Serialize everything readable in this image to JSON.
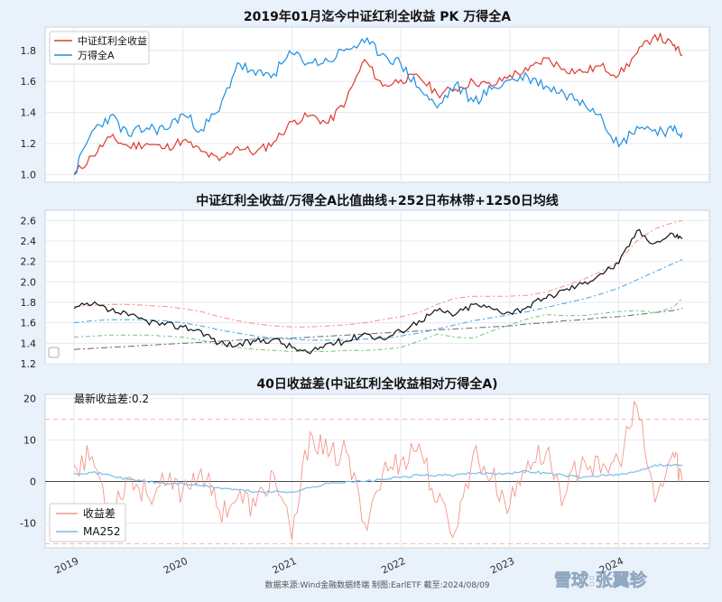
{
  "footer": {
    "source": "数据来源:Wind金融数据终端   制图:EarlETF 截至:2024/08/09",
    "watermark": "雪球:张翼轸"
  },
  "colors": {
    "dividend": "#e03a2f",
    "wanA": "#1f8fe0",
    "ratio": "#111111",
    "band_upper": "#ff8a80",
    "band_mid": "#3fa3e8",
    "band_lower": "#6cc46c",
    "ma1250": "#666666",
    "spread": "#f4968a",
    "ma252": "#79bde8"
  },
  "chart_data": [
    {
      "type": "line",
      "title": "2019年01月迄今中证红利全收益 PK 万得全A",
      "legend_position": "top-left",
      "grid": true,
      "ylim": [
        0.95,
        1.95
      ],
      "yticks": [
        "1.0",
        "1.2",
        "1.4",
        "1.6",
        "1.8"
      ],
      "x": [
        "2019-01",
        "2019-03",
        "2019-05",
        "2019-07",
        "2019-09",
        "2019-11",
        "2020-01",
        "2020-03",
        "2020-05",
        "2020-07",
        "2020-09",
        "2020-11",
        "2021-01",
        "2021-03",
        "2021-05",
        "2021-07",
        "2021-09",
        "2021-11",
        "2022-01",
        "2022-03",
        "2022-05",
        "2022-07",
        "2022-09",
        "2022-11",
        "2023-01",
        "2023-03",
        "2023-05",
        "2023-07",
        "2023-09",
        "2023-11",
        "2024-01",
        "2024-03",
        "2024-05",
        "2024-07",
        "2024-08"
      ],
      "series": [
        {
          "name": "中证红利全收益",
          "values": [
            1.0,
            1.12,
            1.24,
            1.18,
            1.2,
            1.17,
            1.22,
            1.15,
            1.09,
            1.18,
            1.14,
            1.21,
            1.34,
            1.38,
            1.33,
            1.48,
            1.74,
            1.57,
            1.61,
            1.63,
            1.52,
            1.55,
            1.6,
            1.57,
            1.64,
            1.67,
            1.75,
            1.68,
            1.66,
            1.7,
            1.64,
            1.78,
            1.9,
            1.83,
            1.77
          ]
        },
        {
          "name": "万得全A",
          "values": [
            1.0,
            1.28,
            1.38,
            1.25,
            1.3,
            1.29,
            1.39,
            1.29,
            1.41,
            1.72,
            1.64,
            1.65,
            1.78,
            1.72,
            1.73,
            1.81,
            1.85,
            1.78,
            1.71,
            1.56,
            1.43,
            1.58,
            1.47,
            1.55,
            1.61,
            1.63,
            1.57,
            1.52,
            1.48,
            1.39,
            1.18,
            1.31,
            1.29,
            1.28,
            1.27
          ]
        }
      ]
    },
    {
      "type": "line",
      "title": "中证红利全收益/万得全A比值曲线+252日布林带+1250日均线",
      "grid": true,
      "ylim": [
        1.2,
        2.7
      ],
      "yticks": [
        "1.2",
        "1.4",
        "1.6",
        "1.8",
        "2.0",
        "2.2",
        "2.4",
        "2.6"
      ],
      "x": [
        "2019-01",
        "2019-03",
        "2019-05",
        "2019-07",
        "2019-09",
        "2019-11",
        "2020-01",
        "2020-03",
        "2020-05",
        "2020-07",
        "2020-09",
        "2020-11",
        "2021-01",
        "2021-03",
        "2021-05",
        "2021-07",
        "2021-09",
        "2021-11",
        "2022-01",
        "2022-03",
        "2022-05",
        "2022-07",
        "2022-09",
        "2022-11",
        "2023-01",
        "2023-03",
        "2023-05",
        "2023-07",
        "2023-09",
        "2023-11",
        "2024-01",
        "2024-03",
        "2024-05",
        "2024-07",
        "2024-08"
      ],
      "series": [
        {
          "role": "ratio",
          "values": [
            1.74,
            1.78,
            1.72,
            1.67,
            1.62,
            1.58,
            1.56,
            1.52,
            1.4,
            1.38,
            1.42,
            1.44,
            1.36,
            1.3,
            1.4,
            1.42,
            1.5,
            1.44,
            1.52,
            1.62,
            1.72,
            1.68,
            1.78,
            1.74,
            1.7,
            1.76,
            1.84,
            1.92,
            1.98,
            2.08,
            2.18,
            2.5,
            2.38,
            2.47,
            2.42
          ]
        },
        {
          "role": "band_upper",
          "values": [
            1.76,
            1.77,
            1.78,
            1.78,
            1.77,
            1.76,
            1.74,
            1.71,
            1.66,
            1.62,
            1.59,
            1.57,
            1.56,
            1.56,
            1.57,
            1.58,
            1.6,
            1.63,
            1.66,
            1.7,
            1.78,
            1.84,
            1.86,
            1.86,
            1.86,
            1.87,
            1.9,
            1.96,
            2.02,
            2.1,
            2.2,
            2.4,
            2.52,
            2.58,
            2.6
          ]
        },
        {
          "role": "band_mid",
          "values": [
            1.6,
            1.62,
            1.63,
            1.63,
            1.63,
            1.62,
            1.6,
            1.57,
            1.53,
            1.5,
            1.47,
            1.45,
            1.44,
            1.43,
            1.43,
            1.43,
            1.44,
            1.45,
            1.47,
            1.5,
            1.54,
            1.58,
            1.62,
            1.65,
            1.68,
            1.71,
            1.75,
            1.79,
            1.83,
            1.88,
            1.94,
            2.02,
            2.1,
            2.18,
            2.22
          ]
        },
        {
          "role": "band_lower",
          "values": [
            1.46,
            1.47,
            1.48,
            1.48,
            1.48,
            1.47,
            1.46,
            1.43,
            1.39,
            1.36,
            1.34,
            1.33,
            1.32,
            1.32,
            1.32,
            1.33,
            1.33,
            1.34,
            1.36,
            1.42,
            1.49,
            1.46,
            1.45,
            1.52,
            1.58,
            1.64,
            1.68,
            1.67,
            1.67,
            1.69,
            1.71,
            1.72,
            1.7,
            1.75,
            1.84
          ]
        },
        {
          "role": "ma1250",
          "values": [
            1.34,
            1.35,
            1.36,
            1.37,
            1.38,
            1.39,
            1.4,
            1.41,
            1.42,
            1.43,
            1.44,
            1.45,
            1.45,
            1.46,
            1.47,
            1.48,
            1.49,
            1.5,
            1.51,
            1.52,
            1.53,
            1.54,
            1.55,
            1.56,
            1.57,
            1.59,
            1.6,
            1.62,
            1.63,
            1.65,
            1.66,
            1.68,
            1.7,
            1.72,
            1.74
          ]
        }
      ]
    },
    {
      "type": "line",
      "title": "40日收益差(中证红利全收益相对万得全A)",
      "annotation": "最新收益差:0.2",
      "legend_position": "bottom-left",
      "grid": true,
      "ylim": [
        -16,
        21
      ],
      "yticks": [
        "20",
        "10",
        "0",
        "-10"
      ],
      "reference_lines": [
        15,
        -15
      ],
      "xticks": [
        "2019",
        "2020",
        "2021",
        "2022",
        "2023",
        "2024"
      ],
      "x": [
        "2019-01",
        "2019-03",
        "2019-05",
        "2019-07",
        "2019-09",
        "2019-11",
        "2020-01",
        "2020-03",
        "2020-05",
        "2020-07",
        "2020-09",
        "2020-11",
        "2021-01",
        "2021-03",
        "2021-05",
        "2021-07",
        "2021-09",
        "2021-11",
        "2022-01",
        "2022-03",
        "2022-05",
        "2022-07",
        "2022-09",
        "2022-11",
        "2023-01",
        "2023-03",
        "2023-05",
        "2023-07",
        "2023-09",
        "2023-11",
        "2024-01",
        "2024-03",
        "2024-05",
        "2024-07",
        "2024-08"
      ],
      "series": [
        {
          "name": "收益差",
          "values": [
            4,
            6,
            -7,
            1,
            -3,
            -1,
            -2,
            3,
            -7,
            -4,
            -6,
            2,
            -14,
            12,
            6,
            7,
            -10,
            2,
            5,
            9,
            -5,
            -12,
            7,
            1,
            -6,
            5,
            7,
            -4,
            6,
            2,
            5,
            18,
            -5,
            7,
            0.2
          ]
        },
        {
          "name": "MA252",
          "values": [
            2,
            2.2,
            1.5,
            0.5,
            0,
            -0.5,
            -0.5,
            -1,
            -1.5,
            -2,
            -2.5,
            -2.5,
            -2.5,
            -1.5,
            -0.5,
            0,
            0,
            0.5,
            1,
            1.5,
            1.5,
            1.5,
            2,
            2,
            2,
            2.5,
            2,
            1.5,
            1,
            1.5,
            1.5,
            2.5,
            4,
            4,
            4
          ]
        }
      ]
    }
  ]
}
